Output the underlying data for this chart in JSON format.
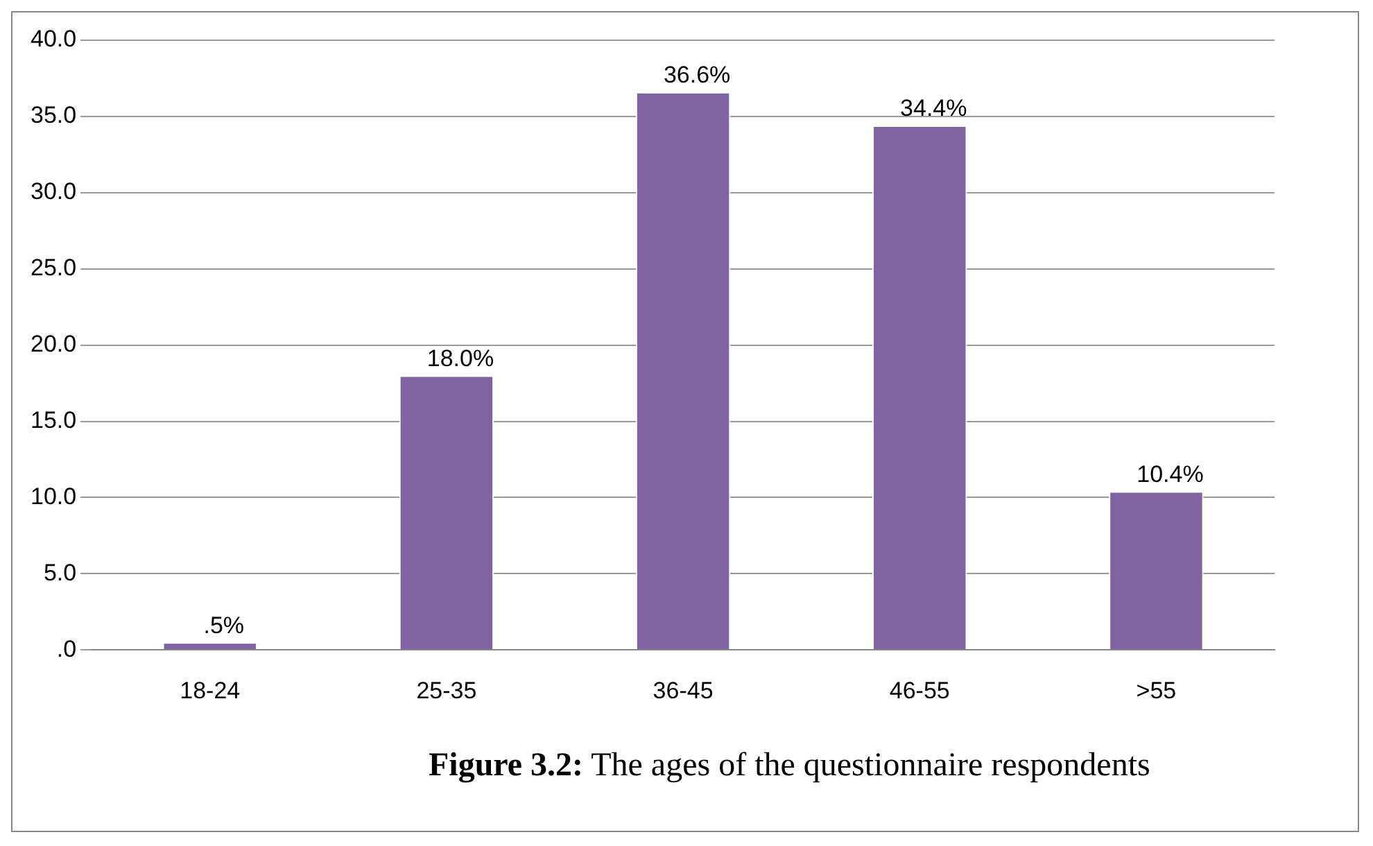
{
  "chart_data": {
    "type": "bar",
    "categories": [
      "18-24",
      "25-35",
      "36-45",
      "46-55",
      ">55"
    ],
    "values": [
      0.5,
      18.0,
      36.6,
      34.4,
      10.4
    ],
    "value_labels": [
      ".5%",
      "18.0%",
      "36.6%",
      "34.4%",
      "10.4%"
    ],
    "color": "#8064a2",
    "ylim": [
      0,
      40
    ],
    "yticks": [
      {
        "value": 0,
        "label": ".0"
      },
      {
        "value": 5,
        "label": "5.0"
      },
      {
        "value": 10,
        "label": "10.0"
      },
      {
        "value": 15,
        "label": "15.0"
      },
      {
        "value": 20,
        "label": "20.0"
      },
      {
        "value": 25,
        "label": "25.0"
      },
      {
        "value": 30,
        "label": "30.0"
      },
      {
        "value": 35,
        "label": "35.0"
      },
      {
        "value": 40,
        "label": "40.0"
      }
    ],
    "grid": "y",
    "annotations": [
      "Figure 3.2: The ages of the questionnaire respondents"
    ]
  }
}
